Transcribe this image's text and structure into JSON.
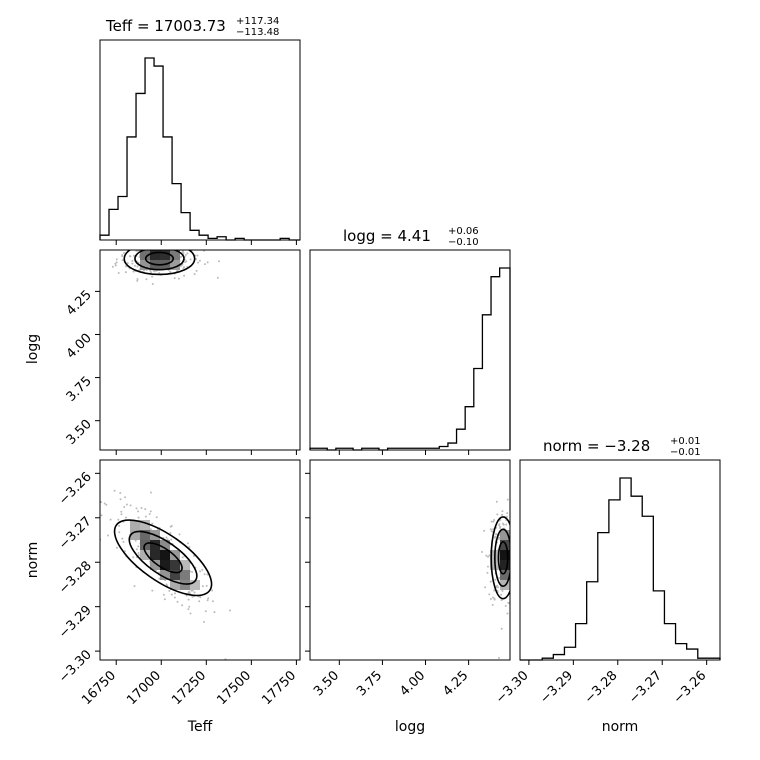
{
  "chart_data": {
    "type": "corner",
    "parameters": [
      "Teff",
      "logg",
      "norm"
    ],
    "panel_titles": [
      {
        "text": "Teff = 17003.73",
        "upper": "+117.34",
        "lower": "−113.48"
      },
      {
        "text": "logg = 4.41",
        "upper": "+0.06",
        "lower": "−0.10"
      },
      {
        "text": "norm = −3.28",
        "upper": "+0.01",
        "lower": "−0.01"
      }
    ],
    "axis_labels": {
      "x": [
        "Teff",
        "logg",
        "norm"
      ],
      "y": [
        "logg",
        "norm"
      ]
    },
    "ranges": {
      "Teff": [
        16660,
        17770
      ],
      "logg": [
        3.33,
        4.49
      ],
      "norm": [
        -3.302,
        -3.257
      ]
    },
    "ticks": {
      "Teff": [
        16750,
        17000,
        17250,
        17500,
        17750
      ],
      "logg": [
        3.5,
        3.75,
        4.0,
        4.25
      ],
      "norm": [
        -3.3,
        -3.29,
        -3.28,
        -3.27,
        -3.26
      ]
    },
    "tick_labels": {
      "Teff": [
        "16750",
        "17000",
        "17250",
        "17500",
        "17750"
      ],
      "logg": [
        "3.50",
        "3.75",
        "4.00",
        "4.25"
      ],
      "norm": [
        "−3.30",
        "−3.29",
        "−3.28",
        "−3.27",
        "−3.26"
      ]
    },
    "histograms": {
      "Teff": {
        "bins": [
          16660,
          16710,
          16760,
          16810,
          16860,
          16910,
          16960,
          17010,
          17060,
          17110,
          17160,
          17210,
          17260,
          17310,
          17360,
          17410,
          17460,
          17510,
          17560,
          17610,
          17660,
          17710,
          17770
        ],
        "counts": [
          3,
          19,
          27,
          64,
          91,
          113,
          108,
          64,
          35,
          17,
          6,
          3,
          1,
          2,
          0,
          1,
          0,
          0,
          0,
          0,
          1,
          0
        ]
      },
      "logg": {
        "bins": [
          3.33,
          3.38,
          3.43,
          3.48,
          3.53,
          3.58,
          3.63,
          3.68,
          3.73,
          3.78,
          3.83,
          3.88,
          3.93,
          3.98,
          4.03,
          4.08,
          4.13,
          4.18,
          4.23,
          4.28,
          4.33,
          4.38,
          4.43,
          4.49
        ],
        "counts": [
          1,
          1,
          0,
          1,
          1,
          0,
          1,
          1,
          0,
          1,
          1,
          1,
          1,
          1,
          1,
          2,
          4,
          12,
          25,
          47,
          78,
          100,
          105
        ]
      },
      "norm": {
        "bins": [
          -3.302,
          -3.2995,
          -3.297,
          -3.2945,
          -3.292,
          -3.2895,
          -3.287,
          -3.2845,
          -3.282,
          -3.2795,
          -3.277,
          -3.2745,
          -3.272,
          -3.2695,
          -3.267,
          -3.2645,
          -3.262,
          -3.2595,
          -3.257
        ],
        "counts": [
          0,
          0,
          1,
          3,
          7,
          20,
          43,
          70,
          88,
          100,
          90,
          79,
          38,
          20,
          9,
          6,
          1,
          1
        ]
      }
    },
    "density_peaks": [
      {
        "x": "Teff",
        "y": "logg",
        "center": [
          16990,
          4.44
        ],
        "spread": [
          85,
          0.04
        ]
      },
      {
        "x": "Teff",
        "y": "norm",
        "center": [
          17010,
          -3.279
        ],
        "spread": [
          110,
          0.005
        ],
        "correlation": -0.85
      },
      {
        "x": "logg",
        "y": "norm",
        "center": [
          4.45,
          -3.279
        ],
        "spread": [
          0.03,
          0.004
        ]
      }
    ],
    "grid": false,
    "legend": "none"
  }
}
